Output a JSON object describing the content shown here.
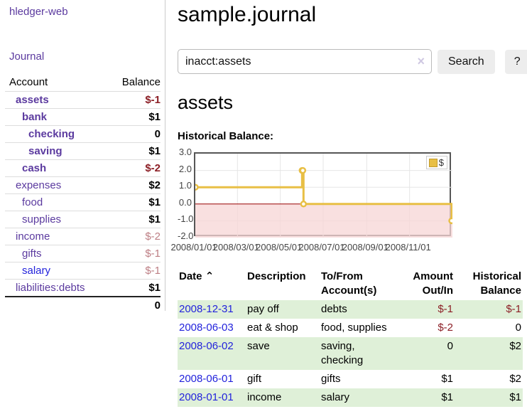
{
  "app": {
    "brand": "hledger-web"
  },
  "colors": {
    "link_purple": "#5b3a9f",
    "link_blue": "#2323dc",
    "negative_strong": "#8c1f26",
    "negative_muted": "#bd7e84",
    "row_green": "#dff0d8",
    "chart_line": "#e8bf45",
    "chart_negative_fill": "#f7d6d6",
    "chart_zero_line": "#990000"
  },
  "sidebar": {
    "journal_link": "Journal",
    "headers": {
      "account": "Account",
      "balance": "Balance"
    },
    "accounts": [
      {
        "name": "assets",
        "balance": "$-1"
      },
      {
        "name": "bank",
        "balance": "$1"
      },
      {
        "name": "checking",
        "balance": "0"
      },
      {
        "name": "saving",
        "balance": "$1"
      },
      {
        "name": "cash",
        "balance": "$-2"
      },
      {
        "name": "expenses",
        "balance": "$2"
      },
      {
        "name": "food",
        "balance": "$1"
      },
      {
        "name": "supplies",
        "balance": "$1"
      },
      {
        "name": "income",
        "balance": "$-2"
      },
      {
        "name": "gifts",
        "balance": "$-1"
      },
      {
        "name": "salary",
        "balance": "$-1"
      },
      {
        "name": "liabilities:debts",
        "balance": "$1"
      }
    ],
    "total": "0"
  },
  "header": {
    "title": "sample.journal"
  },
  "search": {
    "value": "inacct:assets",
    "clear_icon": "×",
    "button_label": "Search",
    "help_label": "?"
  },
  "account_page": {
    "heading": "assets",
    "chart_label": "Historical Balance:"
  },
  "chart_data": {
    "type": "line",
    "title": "Historical Balance:",
    "style": "steps",
    "series": [
      {
        "name": "$",
        "points": [
          [
            "2008-01-01",
            1
          ],
          [
            "2008-06-01",
            2
          ],
          [
            "2008-06-02",
            2
          ],
          [
            "2008-06-03",
            0
          ],
          [
            "2008-12-31",
            -1
          ]
        ]
      }
    ],
    "x_range": [
      "2008-01-01",
      "2009-01-01"
    ],
    "ylim": [
      -2,
      3
    ],
    "y_ticks": [
      {
        "label": "3.0",
        "value": 3
      },
      {
        "label": "2.0",
        "value": 2
      },
      {
        "label": "1.0",
        "value": 1
      },
      {
        "label": "0.0",
        "value": 0
      },
      {
        "label": "-1.0",
        "value": -1
      },
      {
        "label": "-2.0",
        "value": -2
      }
    ],
    "x_ticks": [
      {
        "label": "2008/01/01",
        "date": "2008-01-01"
      },
      {
        "label": "2008/03/01",
        "date": "2008-03-01"
      },
      {
        "label": "2008/05/01",
        "date": "2008-05-01"
      },
      {
        "label": "2008/07/01",
        "date": "2008-07-01"
      },
      {
        "label": "2008/09/01",
        "date": "2008-09-01"
      },
      {
        "label": "2008/11/01",
        "date": "2008-11-01"
      }
    ],
    "legend": {
      "label": "$",
      "position": "top-right"
    },
    "grid": true,
    "negative_region_shaded": true
  },
  "register": {
    "headers": {
      "date": "Date",
      "sort_icon": "⌃",
      "description": "Description",
      "account": "To/From Account(s)",
      "amount": "Amount Out/In",
      "balance": "Historical Balance"
    },
    "rows": [
      {
        "date": "2008-12-31",
        "description": "pay off",
        "account": "debts",
        "amount": "$-1",
        "balance": "$-1"
      },
      {
        "date": "2008-06-03",
        "description": "eat & shop",
        "account": "food, supplies",
        "amount": "$-2",
        "balance": "0"
      },
      {
        "date": "2008-06-02",
        "description": "save",
        "account": "saving,\nchecking",
        "amount": "0",
        "balance": "$2"
      },
      {
        "date": "2008-06-01",
        "description": "gift",
        "account": "gifts",
        "amount": "$1",
        "balance": "$2"
      },
      {
        "date": "2008-01-01",
        "description": "income",
        "account": "salary",
        "amount": "$1",
        "balance": "$1"
      }
    ]
  }
}
